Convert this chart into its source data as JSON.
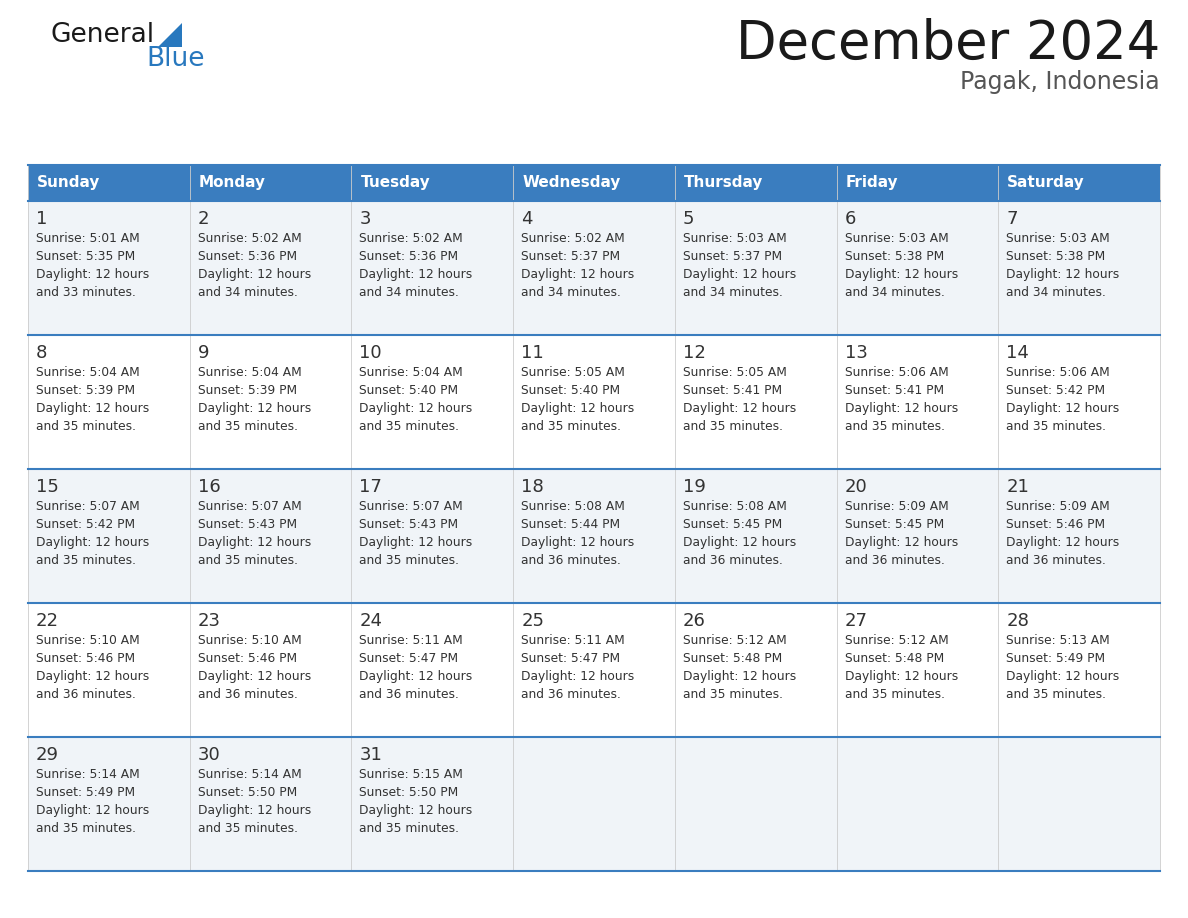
{
  "title": "December 2024",
  "subtitle": "Pagak, Indonesia",
  "header_bg_color": "#3A7DBF",
  "header_text_color": "#FFFFFF",
  "day_names": [
    "Sunday",
    "Monday",
    "Tuesday",
    "Wednesday",
    "Thursday",
    "Friday",
    "Saturday"
  ],
  "cell_bg_odd": "#F0F4F8",
  "cell_bg_even": "#FFFFFF",
  "divider_color": "#3A7DBF",
  "text_color": "#333333",
  "days": [
    {
      "day": 1,
      "col": 0,
      "row": 0,
      "sunrise": "5:01 AM",
      "sunset": "5:35 PM",
      "daylight_min": 33
    },
    {
      "day": 2,
      "col": 1,
      "row": 0,
      "sunrise": "5:02 AM",
      "sunset": "5:36 PM",
      "daylight_min": 34
    },
    {
      "day": 3,
      "col": 2,
      "row": 0,
      "sunrise": "5:02 AM",
      "sunset": "5:36 PM",
      "daylight_min": 34
    },
    {
      "day": 4,
      "col": 3,
      "row": 0,
      "sunrise": "5:02 AM",
      "sunset": "5:37 PM",
      "daylight_min": 34
    },
    {
      "day": 5,
      "col": 4,
      "row": 0,
      "sunrise": "5:03 AM",
      "sunset": "5:37 PM",
      "daylight_min": 34
    },
    {
      "day": 6,
      "col": 5,
      "row": 0,
      "sunrise": "5:03 AM",
      "sunset": "5:38 PM",
      "daylight_min": 34
    },
    {
      "day": 7,
      "col": 6,
      "row": 0,
      "sunrise": "5:03 AM",
      "sunset": "5:38 PM",
      "daylight_min": 34
    },
    {
      "day": 8,
      "col": 0,
      "row": 1,
      "sunrise": "5:04 AM",
      "sunset": "5:39 PM",
      "daylight_min": 35
    },
    {
      "day": 9,
      "col": 1,
      "row": 1,
      "sunrise": "5:04 AM",
      "sunset": "5:39 PM",
      "daylight_min": 35
    },
    {
      "day": 10,
      "col": 2,
      "row": 1,
      "sunrise": "5:04 AM",
      "sunset": "5:40 PM",
      "daylight_min": 35
    },
    {
      "day": 11,
      "col": 3,
      "row": 1,
      "sunrise": "5:05 AM",
      "sunset": "5:40 PM",
      "daylight_min": 35
    },
    {
      "day": 12,
      "col": 4,
      "row": 1,
      "sunrise": "5:05 AM",
      "sunset": "5:41 PM",
      "daylight_min": 35
    },
    {
      "day": 13,
      "col": 5,
      "row": 1,
      "sunrise": "5:06 AM",
      "sunset": "5:41 PM",
      "daylight_min": 35
    },
    {
      "day": 14,
      "col": 6,
      "row": 1,
      "sunrise": "5:06 AM",
      "sunset": "5:42 PM",
      "daylight_min": 35
    },
    {
      "day": 15,
      "col": 0,
      "row": 2,
      "sunrise": "5:07 AM",
      "sunset": "5:42 PM",
      "daylight_min": 35
    },
    {
      "day": 16,
      "col": 1,
      "row": 2,
      "sunrise": "5:07 AM",
      "sunset": "5:43 PM",
      "daylight_min": 35
    },
    {
      "day": 17,
      "col": 2,
      "row": 2,
      "sunrise": "5:07 AM",
      "sunset": "5:43 PM",
      "daylight_min": 35
    },
    {
      "day": 18,
      "col": 3,
      "row": 2,
      "sunrise": "5:08 AM",
      "sunset": "5:44 PM",
      "daylight_min": 36
    },
    {
      "day": 19,
      "col": 4,
      "row": 2,
      "sunrise": "5:08 AM",
      "sunset": "5:45 PM",
      "daylight_min": 36
    },
    {
      "day": 20,
      "col": 5,
      "row": 2,
      "sunrise": "5:09 AM",
      "sunset": "5:45 PM",
      "daylight_min": 36
    },
    {
      "day": 21,
      "col": 6,
      "row": 2,
      "sunrise": "5:09 AM",
      "sunset": "5:46 PM",
      "daylight_min": 36
    },
    {
      "day": 22,
      "col": 0,
      "row": 3,
      "sunrise": "5:10 AM",
      "sunset": "5:46 PM",
      "daylight_min": 36
    },
    {
      "day": 23,
      "col": 1,
      "row": 3,
      "sunrise": "5:10 AM",
      "sunset": "5:46 PM",
      "daylight_min": 36
    },
    {
      "day": 24,
      "col": 2,
      "row": 3,
      "sunrise": "5:11 AM",
      "sunset": "5:47 PM",
      "daylight_min": 36
    },
    {
      "day": 25,
      "col": 3,
      "row": 3,
      "sunrise": "5:11 AM",
      "sunset": "5:47 PM",
      "daylight_min": 36
    },
    {
      "day": 26,
      "col": 4,
      "row": 3,
      "sunrise": "5:12 AM",
      "sunset": "5:48 PM",
      "daylight_min": 35
    },
    {
      "day": 27,
      "col": 5,
      "row": 3,
      "sunrise": "5:12 AM",
      "sunset": "5:48 PM",
      "daylight_min": 35
    },
    {
      "day": 28,
      "col": 6,
      "row": 3,
      "sunrise": "5:13 AM",
      "sunset": "5:49 PM",
      "daylight_min": 35
    },
    {
      "day": 29,
      "col": 0,
      "row": 4,
      "sunrise": "5:14 AM",
      "sunset": "5:49 PM",
      "daylight_min": 35
    },
    {
      "day": 30,
      "col": 1,
      "row": 4,
      "sunrise": "5:14 AM",
      "sunset": "5:50 PM",
      "daylight_min": 35
    },
    {
      "day": 31,
      "col": 2,
      "row": 4,
      "sunrise": "5:15 AM",
      "sunset": "5:50 PM",
      "daylight_min": 35
    }
  ],
  "logo_color1": "#1A1A1A",
  "logo_color2": "#2878BE",
  "logo_triangle_color": "#2878BE",
  "title_fontsize": 38,
  "subtitle_fontsize": 17,
  "header_fontsize": 11,
  "day_num_fontsize": 13,
  "cell_text_fontsize": 8.8
}
